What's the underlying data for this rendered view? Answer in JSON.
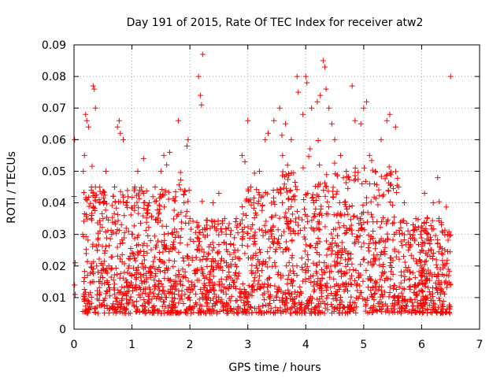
{
  "chart_data": {
    "type": "scatter",
    "title": "Day 191 of 2015, Rate Of TEC Index for receiver atw2",
    "xlabel": "GPS time / hours",
    "ylabel": "ROTI / TECUs",
    "xlim": [
      0,
      7
    ],
    "ylim": [
      0,
      0.09
    ],
    "x_ticks": [
      "0",
      "1",
      "2",
      "3",
      "4",
      "5",
      "6",
      "7"
    ],
    "y_ticks": [
      "0",
      "0.01",
      "0.02",
      "0.03",
      "0.04",
      "0.05",
      "0.06",
      "0.07",
      "0.08",
      "0.09"
    ],
    "grid": true,
    "marker": "+",
    "series_color": "#ff0000",
    "note": "Dense noisy scatter of ~2000+ samples from 0 to 6.5 h; bulk between 0.005 and 0.05 TECU with sparse outliers to ~0.087. Points below are representative.",
    "series": [
      {
        "name": "ROTI",
        "points": [
          [
            0.0,
            0.042
          ],
          [
            0.01,
            0.06
          ],
          [
            0.01,
            0.014
          ],
          [
            0.02,
            0.021
          ],
          [
            0.02,
            0.011
          ],
          [
            0.15,
            0.03
          ],
          [
            0.16,
            0.05
          ],
          [
            0.18,
            0.055
          ],
          [
            0.2,
            0.068
          ],
          [
            0.22,
            0.066
          ],
          [
            0.25,
            0.064
          ],
          [
            0.3,
            0.045
          ],
          [
            0.33,
            0.077
          ],
          [
            0.35,
            0.076
          ],
          [
            0.37,
            0.07
          ],
          [
            0.4,
            0.025
          ],
          [
            0.45,
            0.04
          ],
          [
            0.5,
            0.035
          ],
          [
            0.55,
            0.05
          ],
          [
            0.6,
            0.02
          ],
          [
            0.65,
            0.03
          ],
          [
            0.7,
            0.045
          ],
          [
            0.75,
            0.064
          ],
          [
            0.78,
            0.066
          ],
          [
            0.8,
            0.062
          ],
          [
            0.85,
            0.06
          ],
          [
            0.9,
            0.04
          ],
          [
            0.95,
            0.02
          ],
          [
            1.0,
            0.03
          ],
          [
            1.05,
            0.045
          ],
          [
            1.1,
            0.05
          ],
          [
            1.2,
            0.054
          ],
          [
            1.3,
            0.04
          ],
          [
            1.4,
            0.045
          ],
          [
            1.5,
            0.05
          ],
          [
            1.55,
            0.055
          ],
          [
            1.6,
            0.052
          ],
          [
            1.65,
            0.056
          ],
          [
            1.7,
            0.03
          ],
          [
            1.8,
            0.066
          ],
          [
            1.9,
            0.04
          ],
          [
            1.95,
            0.058
          ],
          [
            1.97,
            0.06
          ],
          [
            2.0,
            0.035
          ],
          [
            2.15,
            0.08
          ],
          [
            2.18,
            0.074
          ],
          [
            2.2,
            0.071
          ],
          [
            2.22,
            0.087
          ],
          [
            2.3,
            0.012
          ],
          [
            2.4,
            0.04
          ],
          [
            2.5,
            0.043
          ],
          [
            2.6,
            0.035
          ],
          [
            2.7,
            0.03
          ],
          [
            2.8,
            0.035
          ],
          [
            2.9,
            0.055
          ],
          [
            2.95,
            0.053
          ],
          [
            3.0,
            0.066
          ],
          [
            3.05,
            0.045
          ],
          [
            3.1,
            0.04
          ],
          [
            3.2,
            0.05
          ],
          [
            3.3,
            0.06
          ],
          [
            3.35,
            0.062
          ],
          [
            3.45,
            0.066
          ],
          [
            3.55,
            0.07
          ],
          [
            3.6,
            0.055
          ],
          [
            3.65,
            0.065
          ],
          [
            3.75,
            0.06
          ],
          [
            3.85,
            0.08
          ],
          [
            3.87,
            0.075
          ],
          [
            3.95,
            0.068
          ],
          [
            4.0,
            0.08
          ],
          [
            4.02,
            0.078
          ],
          [
            4.1,
            0.07
          ],
          [
            4.2,
            0.072
          ],
          [
            4.25,
            0.074
          ],
          [
            4.3,
            0.085
          ],
          [
            4.33,
            0.083
          ],
          [
            4.35,
            0.076
          ],
          [
            4.4,
            0.07
          ],
          [
            4.45,
            0.065
          ],
          [
            4.5,
            0.06
          ],
          [
            4.6,
            0.055
          ],
          [
            4.7,
            0.05
          ],
          [
            4.8,
            0.077
          ],
          [
            4.85,
            0.066
          ],
          [
            4.95,
            0.065
          ],
          [
            5.0,
            0.07
          ],
          [
            5.05,
            0.072
          ],
          [
            5.1,
            0.055
          ],
          [
            5.2,
            0.05
          ],
          [
            5.3,
            0.06
          ],
          [
            5.4,
            0.066
          ],
          [
            5.45,
            0.068
          ],
          [
            5.55,
            0.064
          ],
          [
            5.6,
            0.045
          ],
          [
            5.7,
            0.04
          ],
          [
            5.8,
            0.03
          ],
          [
            5.9,
            0.035
          ],
          [
            6.0,
            0.025
          ],
          [
            6.05,
            0.043
          ],
          [
            6.1,
            0.035
          ],
          [
            6.2,
            0.04
          ],
          [
            6.3,
            0.035
          ],
          [
            6.4,
            0.02
          ],
          [
            6.45,
            0.03
          ],
          [
            6.5,
            0.08
          ],
          [
            6.5,
            0.014
          ],
          [
            6.48,
            0.007
          ]
        ]
      }
    ]
  }
}
